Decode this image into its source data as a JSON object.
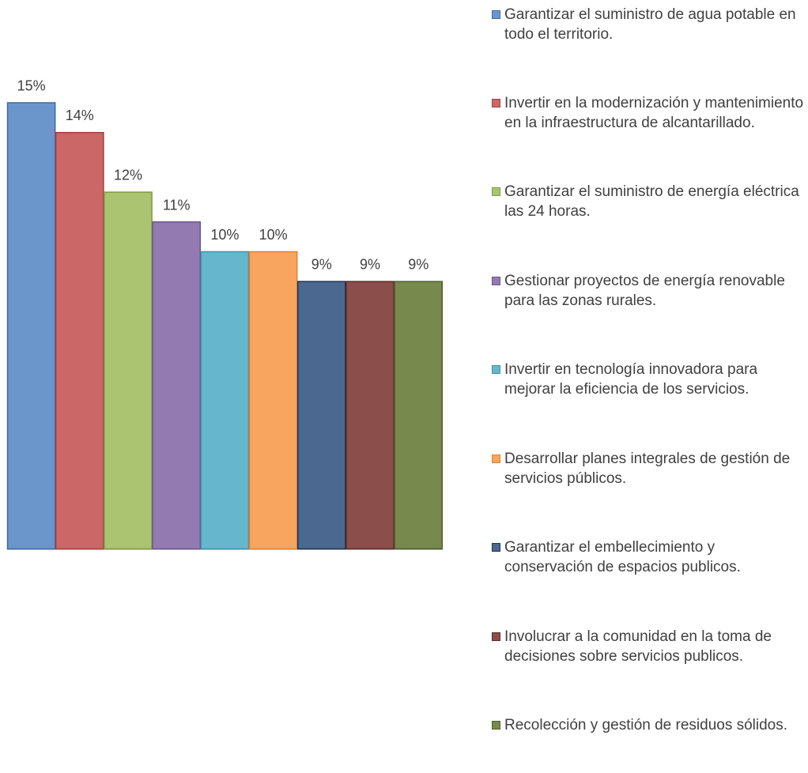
{
  "chart_data": {
    "type": "bar",
    "title": "",
    "xlabel": "",
    "ylabel": "",
    "ylim": [
      0,
      16
    ],
    "grid": false,
    "legend_position": "right",
    "value_suffix": "%",
    "categories": [
      "Garantizar el suministro de agua potable en todo el territorio.",
      "Invertir en la modernización y mantenimiento en la infraestructura de alcantarillado.",
      "Garantizar el suministro de energía eléctrica las 24 horas.",
      "Gestionar proyectos de energía renovable para las zonas rurales.",
      "Invertir en tecnología innovadora para mejorar la eficiencia de los servicios.",
      "Desarrollar planes integrales de gestión de servicios públicos.",
      "Garantizar el embellecimiento y conservación de espacios publicos.",
      "Involucrar a la comunidad en la toma de decisiones sobre servicios publicos.",
      "Recolección y gestión de residuos sólidos."
    ],
    "values": [
      15,
      14,
      12,
      11,
      10,
      10,
      9,
      9,
      9
    ],
    "value_labels": [
      "15%",
      "14%",
      "12%",
      "11%",
      "10%",
      "10%",
      "9%",
      "9%",
      "9%"
    ],
    "colors": [
      "#6a96cc",
      "#cb6766",
      "#aac472",
      "#937bb2",
      "#66b7cd",
      "#f7a55f",
      "#4b6890",
      "#8b4e4b",
      "#78894e"
    ],
    "border_colors": [
      "#3f6aa6",
      "#a53e3c",
      "#809b3f",
      "#6b5590",
      "#3b93ab",
      "#e0812c",
      "#1e334f",
      "#5a2a28",
      "#4f5d2c"
    ]
  }
}
